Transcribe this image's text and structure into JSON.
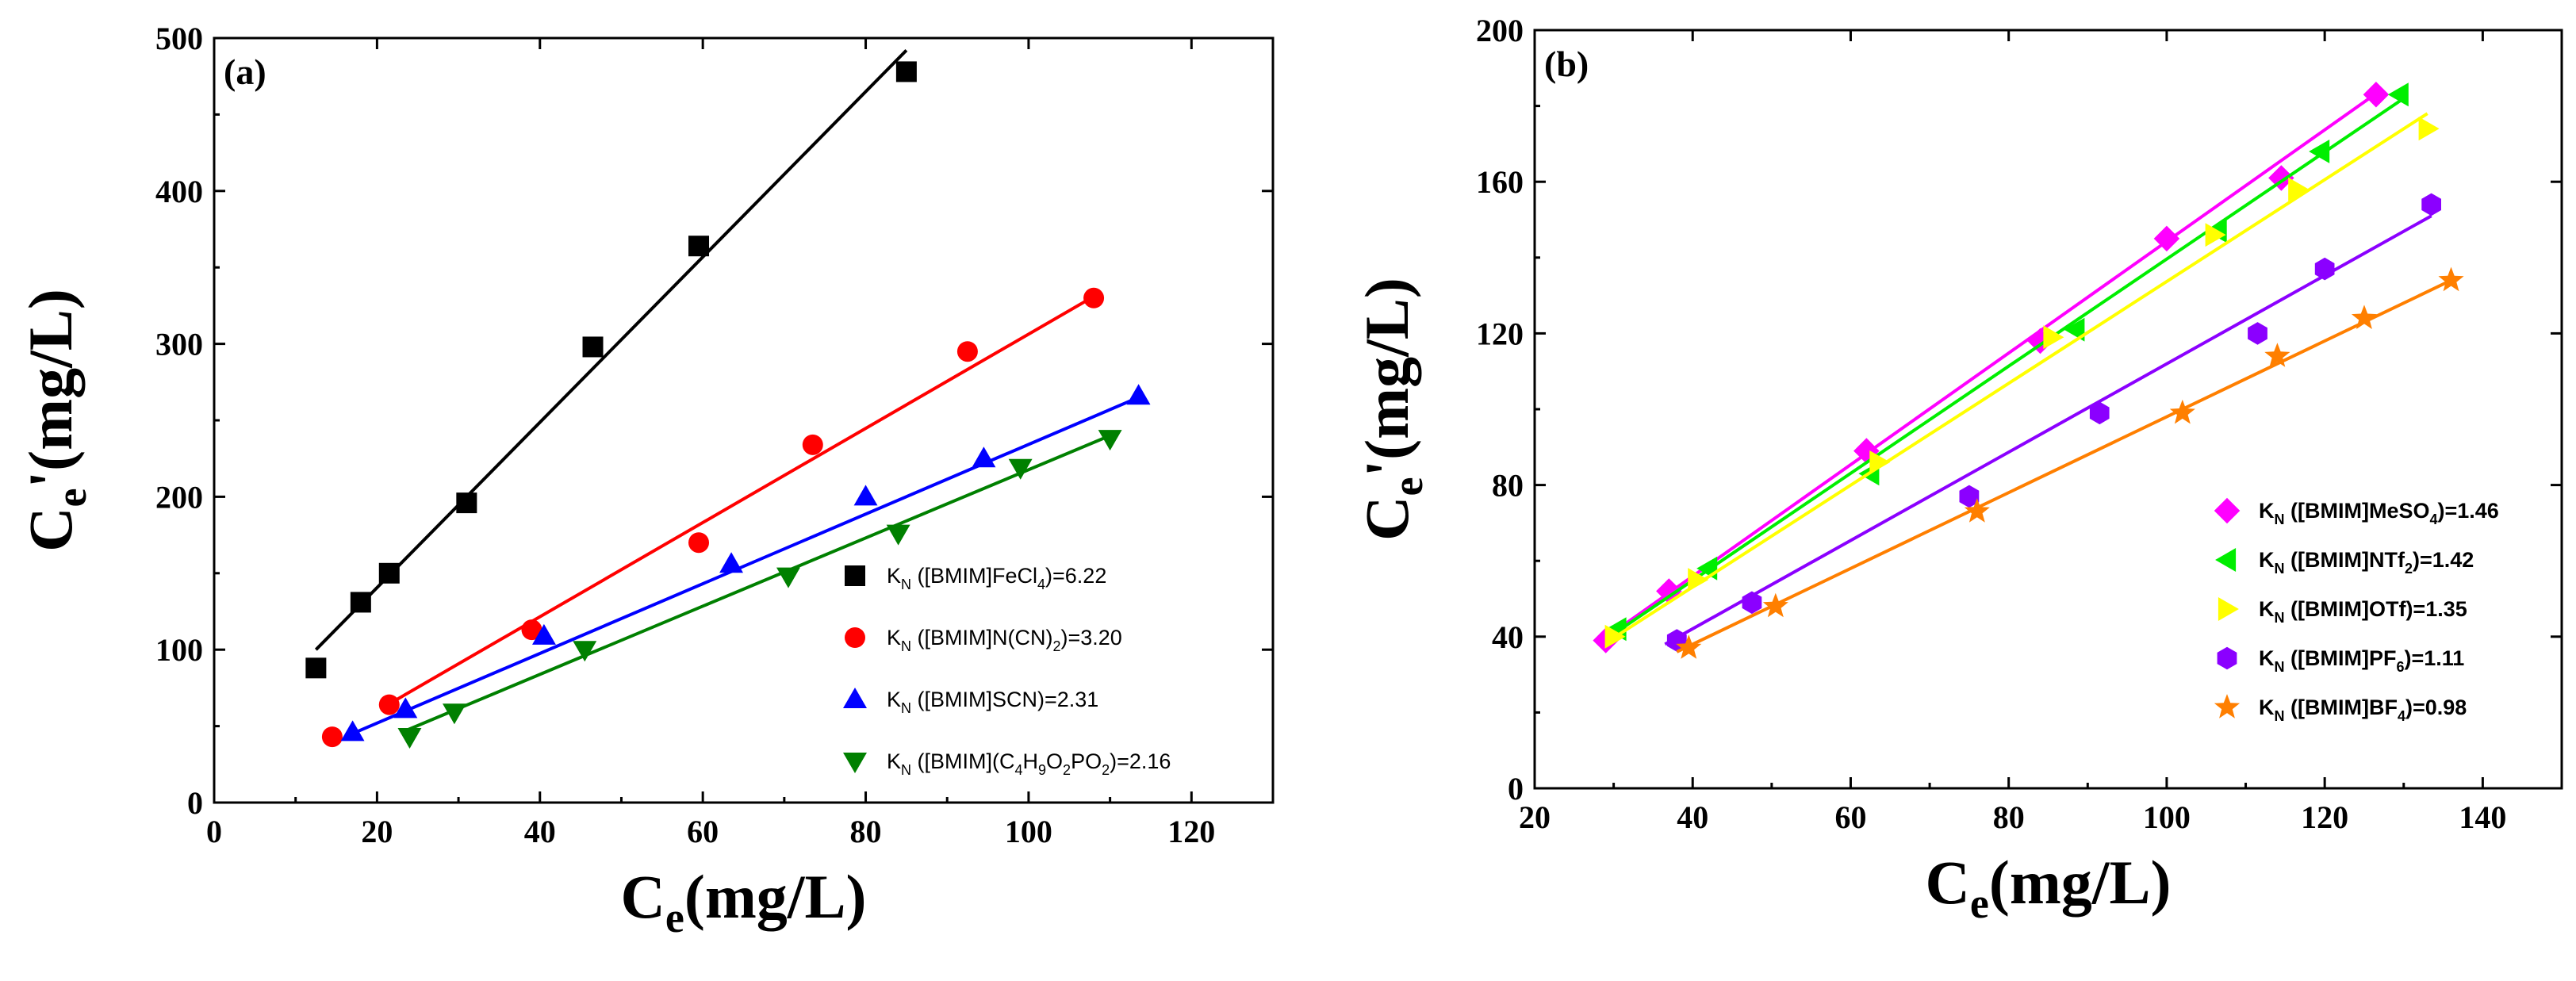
{
  "chart_data": [
    {
      "type": "scatter",
      "panel_label": "(a)",
      "xlabel": {
        "main": "C",
        "sub": "e",
        "rest": "(mg/L)"
      },
      "ylabel": {
        "main": "C",
        "sub": "e",
        "rest": "'(mg/L)"
      },
      "xlim": [
        0,
        130
      ],
      "ylim": [
        0,
        500
      ],
      "xticks": [
        0,
        20,
        40,
        60,
        80,
        100,
        120
      ],
      "yticks": [
        0,
        100,
        200,
        300,
        400,
        500
      ],
      "grid": false,
      "legend_position": "lower-right",
      "series": [
        {
          "name": "K_N ([BMIM]FeCl4)=6.22",
          "legend": {
            "k": "K",
            "ksub": "N",
            "t1": " ([BMIM]FeCl",
            "s1": "4",
            "t2": ")=6.22",
            "s2": "",
            "t3": ""
          },
          "marker": "square",
          "color": "#000000",
          "x": [
            12.5,
            18,
            21.5,
            31,
            46.5,
            59.5,
            85
          ],
          "y": [
            88,
            131,
            150,
            196,
            298,
            364,
            478
          ],
          "fit": {
            "x": [
              12.5,
              85
            ],
            "y": [
              100,
              492
            ]
          }
        },
        {
          "name": "K_N ([BMIM]N(CN)2)=3.20",
          "legend": {
            "k": "K",
            "ksub": "N",
            "t1": " ([BMIM]N(CN)",
            "s1": "2",
            "t2": ")=3.20",
            "s2": "",
            "t3": ""
          },
          "marker": "circle",
          "color": "#ff0000",
          "x": [
            14.5,
            21.5,
            39,
            59.5,
            73.5,
            92.5,
            108
          ],
          "y": [
            43,
            64,
            113,
            170,
            234,
            295,
            330
          ],
          "fit": {
            "x": [
              21,
              108
            ],
            "y": [
              63,
              331
            ]
          }
        },
        {
          "name": "K_N ([BMIM]SCN)=2.31",
          "legend": {
            "k": "K",
            "ksub": "N",
            "t1": " ([BMIM]SCN)=2.31",
            "s1": "",
            "t2": "",
            "s2": "",
            "t3": ""
          },
          "marker": "triangle-up",
          "color": "#0000ff",
          "x": [
            17,
            23.5,
            40.5,
            63.5,
            80,
            94.5,
            113.5
          ],
          "y": [
            46,
            61,
            109,
            156,
            200,
            225,
            266
          ],
          "fit": {
            "x": [
              16.5,
              113.5
            ],
            "y": [
              44,
              265
            ]
          }
        },
        {
          "name": "K_N ([BMIM](C4H9O2PO2)=2.16",
          "legend": {
            "k": "K",
            "ksub": "N",
            "t1": " ([BMIM](C",
            "s1": "4",
            "t2": "H",
            "s2": "9",
            "t3": "O",
            "s3": "2",
            "t4": "PO",
            "s4": "2",
            "t5": ")=2.16"
          },
          "marker": "triangle-down",
          "color": "#008000",
          "x": [
            24,
            29.5,
            45.5,
            70.5,
            84,
            99,
            110
          ],
          "y": [
            43,
            59,
            100,
            148,
            176,
            219,
            238
          ],
          "fit": {
            "x": [
              23.5,
              110
            ],
            "y": [
              47,
              240
            ]
          }
        }
      ]
    },
    {
      "type": "scatter",
      "panel_label": "(b)",
      "xlabel": {
        "main": "C",
        "sub": "e",
        "rest": "(mg/L)"
      },
      "ylabel": {
        "main": "C",
        "sub": "e",
        "rest": "'(mg/L)"
      },
      "xlim": [
        20,
        150
      ],
      "ylim": [
        0,
        200
      ],
      "xticks": [
        20,
        40,
        60,
        80,
        100,
        120,
        140
      ],
      "yticks": [
        0,
        40,
        80,
        120,
        160,
        200
      ],
      "grid": false,
      "legend_position": "lower-right",
      "series": [
        {
          "name": "K_N ([BMIM]MeSO4)=1.46",
          "legend": {
            "k": "K",
            "ksub": "N",
            "t1": " ([BMIM]MeSO",
            "s1": "4",
            "t2": ")=1.46",
            "s2": "",
            "t3": ""
          },
          "marker": "diamond",
          "color": "#ff00ff",
          "x": [
            29,
            37,
            62,
            84,
            100,
            114.5,
            126.5
          ],
          "y": [
            39,
            52,
            89,
            118,
            145,
            161,
            183
          ],
          "fit": {
            "x": [
              28.5,
              127
            ],
            "y": [
              39,
              184
            ]
          }
        },
        {
          "name": "K_N ([BMIM]NTf2)=1.42",
          "legend": {
            "k": "K",
            "ksub": "N",
            "t1": " ([BMIM]NTf",
            "s1": "2",
            "t2": ")=1.42",
            "s2": "",
            "t3": ""
          },
          "marker": "triangle-left",
          "color": "#00ee00",
          "x": [
            30.5,
            42,
            62.5,
            88.5,
            106.5,
            119.5,
            129.5
          ],
          "y": [
            42,
            58,
            83,
            121,
            147,
            168,
            183
          ],
          "fit": {
            "x": [
              29.5,
              130
            ],
            "y": [
              40,
              182
            ]
          }
        },
        {
          "name": "K_N ([BMIM]OTf)=1.35",
          "legend": {
            "k": "K",
            "ksub": "N",
            "t1": " ([BMIM]OTf)=1.35",
            "s1": "",
            "t2": "",
            "s2": "",
            "t3": ""
          },
          "marker": "triangle-right",
          "color": "#ffff00",
          "x": [
            30,
            40.5,
            63.5,
            85.5,
            106,
            116.5,
            133
          ],
          "y": [
            40,
            55,
            86,
            119,
            146,
            158,
            174
          ],
          "fit": {
            "x": [
              29.5,
              133
            ],
            "y": [
              39,
              178
            ]
          }
        },
        {
          "name": "K_N ([BMIM]PF6)=1.11",
          "legend": {
            "k": "K",
            "ksub": "N",
            "t1": " ([BMIM]PF",
            "s1": "6",
            "t2": ")=1.11",
            "s2": "",
            "t3": ""
          },
          "marker": "hexagon",
          "color": "#8b00ff",
          "x": [
            38,
            47.5,
            75,
            91.5,
            111.5,
            120,
            133.5
          ],
          "y": [
            39,
            49,
            77,
            99,
            120,
            137,
            154
          ],
          "fit": {
            "x": [
              36.5,
              133.5
            ],
            "y": [
              38,
              151
            ]
          }
        },
        {
          "name": "K_N ([BMIM]BF4)=0.98",
          "legend": {
            "k": "K",
            "ksub": "N",
            "t1": " ([BMIM]BF",
            "s1": "4",
            "t2": ")=0.98",
            "s2": "",
            "t3": ""
          },
          "marker": "star",
          "color": "#ff7f00",
          "x": [
            39.5,
            50.5,
            76,
            102,
            114,
            125,
            136
          ],
          "y": [
            37,
            48,
            73,
            99,
            114,
            124,
            134
          ],
          "fit": {
            "x": [
              38,
              136
            ],
            "y": [
              36,
              134
            ]
          }
        }
      ]
    }
  ]
}
